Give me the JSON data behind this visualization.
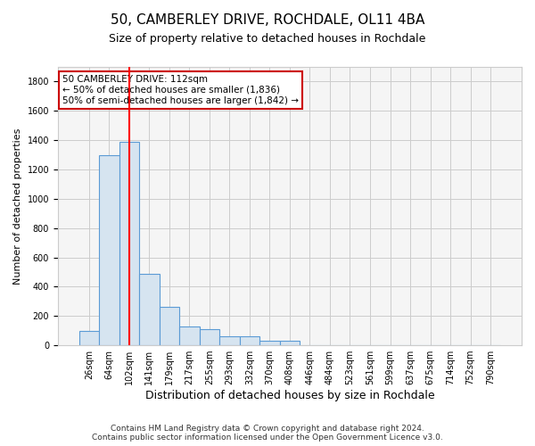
{
  "title": "50, CAMBERLEY DRIVE, ROCHDALE, OL11 4BA",
  "subtitle": "Size of property relative to detached houses in Rochdale",
  "xlabel": "Distribution of detached houses by size in Rochdale",
  "ylabel": "Number of detached properties",
  "bar_labels": [
    "26sqm",
    "64sqm",
    "102sqm",
    "141sqm",
    "179sqm",
    "217sqm",
    "255sqm",
    "293sqm",
    "332sqm",
    "370sqm",
    "408sqm",
    "446sqm",
    "484sqm",
    "523sqm",
    "561sqm",
    "599sqm",
    "637sqm",
    "675sqm",
    "714sqm",
    "752sqm",
    "790sqm"
  ],
  "bar_values": [
    100,
    1300,
    1390,
    490,
    260,
    130,
    110,
    60,
    60,
    30,
    30,
    0,
    0,
    0,
    0,
    0,
    0,
    0,
    0,
    0,
    0
  ],
  "bar_color": "#d6e4f0",
  "bar_edge_color": "#5b9bd5",
  "ylim": [
    0,
    1900
  ],
  "yticks": [
    0,
    200,
    400,
    600,
    800,
    1000,
    1200,
    1400,
    1600,
    1800
  ],
  "red_line_index": 2,
  "annotation_text": "50 CAMBERLEY DRIVE: 112sqm\n← 50% of detached houses are smaller (1,836)\n50% of semi-detached houses are larger (1,842) →",
  "annotation_box_color": "#ffffff",
  "annotation_border_color": "#cc0000",
  "footnote": "Contains HM Land Registry data © Crown copyright and database right 2024.\nContains public sector information licensed under the Open Government Licence v3.0.",
  "background_color": "#ffffff",
  "plot_background_color": "#f5f5f5",
  "grid_color": "#cccccc",
  "title_fontsize": 11,
  "subtitle_fontsize": 9,
  "ylabel_fontsize": 8,
  "xlabel_fontsize": 9,
  "tick_fontsize": 7,
  "annotation_fontsize": 7.5,
  "footnote_fontsize": 6.5
}
